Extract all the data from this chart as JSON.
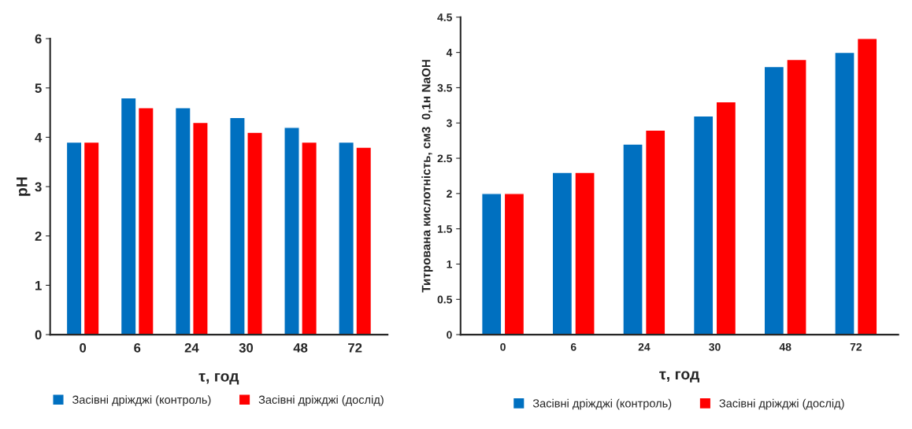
{
  "chart_data": [
    {
      "type": "bar",
      "xlabel": "τ, год",
      "ylabel": "pH",
      "categories": [
        "0",
        "6",
        "24",
        "30",
        "48",
        "72"
      ],
      "ylim": [
        0,
        6
      ],
      "yticks": [
        0,
        1,
        2,
        3,
        4,
        5,
        6
      ],
      "grid": false,
      "legend": "bottom",
      "series": [
        {
          "name": "Засівні дріжджі (контроль)",
          "color": "#0070c0",
          "values": [
            3.9,
            4.8,
            4.6,
            4.4,
            4.2,
            3.9
          ]
        },
        {
          "name": "Засівні дріжджі (дослід)",
          "color": "#ff0000",
          "values": [
            3.9,
            4.6,
            4.3,
            4.1,
            3.9,
            3.8
          ]
        }
      ]
    },
    {
      "type": "bar",
      "xlabel": "τ, год",
      "ylabel": "Титрована кислотність, см3  0,1н NaOH",
      "categories": [
        "0",
        "6",
        "24",
        "30",
        "48",
        "72"
      ],
      "ylim": [
        0,
        4.5
      ],
      "yticks": [
        0,
        0.5,
        1,
        1.5,
        2,
        2.5,
        3,
        3.5,
        4,
        4.5
      ],
      "grid": false,
      "legend": "bottom",
      "series": [
        {
          "name": "Засівні дріжджі (контроль)",
          "color": "#0070c0",
          "values": [
            2.0,
            2.3,
            2.7,
            3.1,
            3.8,
            4.0
          ]
        },
        {
          "name": "Засівні дріжджі (дослід)",
          "color": "#ff0000",
          "values": [
            2.0,
            2.3,
            2.9,
            3.3,
            3.9,
            4.2
          ]
        }
      ]
    }
  ]
}
